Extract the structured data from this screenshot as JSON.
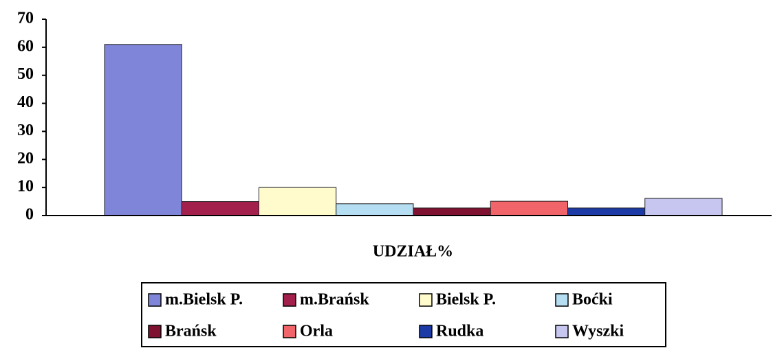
{
  "chart_data": {
    "type": "bar",
    "categories": [
      "UDZIAŁ%"
    ],
    "series": [
      {
        "name": "m.Bielsk P.",
        "color": "#7f86d9",
        "values": [
          61
        ]
      },
      {
        "name": "m.Brańsk",
        "color": "#a3204c",
        "values": [
          5
        ]
      },
      {
        "name": "Bielsk P.",
        "color": "#fffbcc",
        "values": [
          10
        ]
      },
      {
        "name": "Boćki",
        "color": "#b5def2",
        "values": [
          4.2
        ]
      },
      {
        "name": "Brańsk",
        "color": "#7f1230",
        "values": [
          2.7
        ]
      },
      {
        "name": "Orla",
        "color": "#f0646a",
        "values": [
          5.1
        ]
      },
      {
        "name": "Rudka",
        "color": "#1b3aa6",
        "values": [
          2.7
        ]
      },
      {
        "name": "Wyszki",
        "color": "#c6c6f0",
        "values": [
          6.1
        ]
      }
    ],
    "ylim": [
      0,
      70
    ],
    "yticks": [
      0,
      10,
      20,
      30,
      40,
      50,
      60,
      70
    ],
    "grid": false,
    "legend": "bottom"
  }
}
